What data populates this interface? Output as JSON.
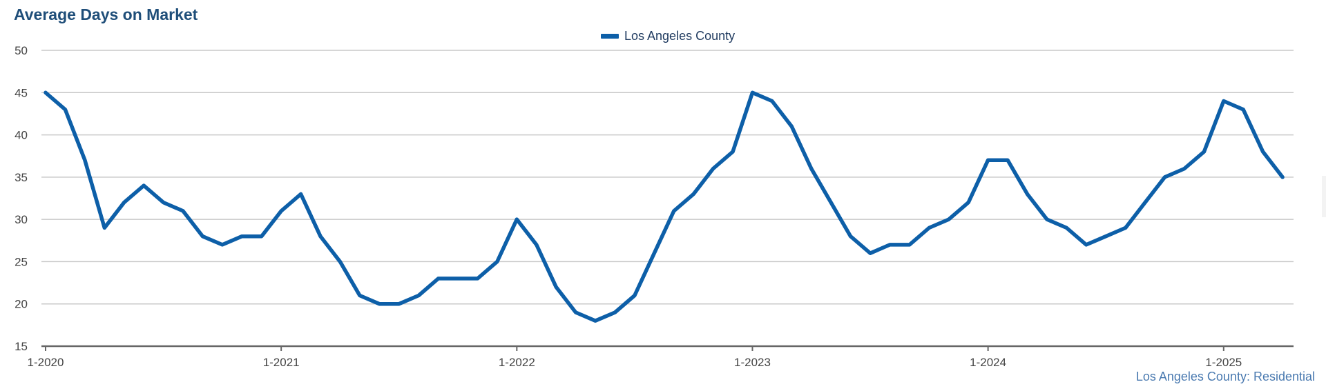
{
  "chart_data": {
    "type": "line",
    "title": "Average Days on Market",
    "legend_position": "top-center",
    "grid": true,
    "ylim": [
      15,
      50
    ],
    "yticks": [
      15,
      20,
      25,
      30,
      35,
      40,
      45,
      50
    ],
    "xtick_labels": [
      "1-2020",
      "1-2021",
      "1-2022",
      "1-2023",
      "1-2024",
      "1-2025"
    ],
    "series": [
      {
        "name": "Los Angeles County",
        "color": "#0d5fa8",
        "x": [
          "1-2020",
          "2-2020",
          "3-2020",
          "4-2020",
          "5-2020",
          "6-2020",
          "7-2020",
          "8-2020",
          "9-2020",
          "10-2020",
          "11-2020",
          "12-2020",
          "1-2021",
          "2-2021",
          "3-2021",
          "4-2021",
          "5-2021",
          "6-2021",
          "7-2021",
          "8-2021",
          "9-2021",
          "10-2021",
          "11-2021",
          "12-2021",
          "1-2022",
          "2-2022",
          "3-2022",
          "4-2022",
          "5-2022",
          "6-2022",
          "7-2022",
          "8-2022",
          "9-2022",
          "10-2022",
          "11-2022",
          "12-2022",
          "1-2023",
          "2-2023",
          "3-2023",
          "4-2023",
          "5-2023",
          "6-2023",
          "7-2023",
          "8-2023",
          "9-2023",
          "10-2023",
          "11-2023",
          "12-2023",
          "1-2024",
          "2-2024",
          "3-2024",
          "4-2024",
          "5-2024",
          "6-2024",
          "7-2024",
          "8-2024",
          "9-2024",
          "10-2024",
          "11-2024",
          "12-2024",
          "1-2025",
          "2-2025",
          "3-2025",
          "4-2025"
        ],
        "values": [
          45,
          43,
          37,
          29,
          32,
          34,
          32,
          31,
          28,
          27,
          28,
          28,
          31,
          33,
          28,
          25,
          21,
          20,
          20,
          21,
          23,
          23,
          23,
          25,
          30,
          27,
          22,
          19,
          18,
          19,
          21,
          26,
          31,
          33,
          36,
          38,
          45,
          44,
          41,
          36,
          32,
          28,
          26,
          27,
          27,
          29,
          30,
          32,
          37,
          37,
          33,
          30,
          29,
          27,
          28,
          29,
          32,
          35,
          36,
          38,
          44,
          43,
          38,
          35
        ]
      }
    ],
    "source_label": "Los Angeles County: Residential"
  }
}
